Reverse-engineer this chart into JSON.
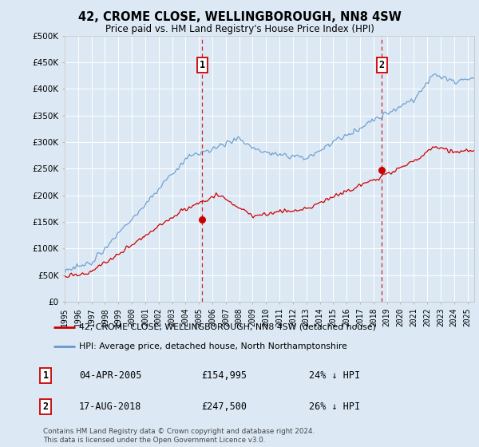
{
  "title": "42, CROME CLOSE, WELLINGBOROUGH, NN8 4SW",
  "subtitle": "Price paid vs. HM Land Registry's House Price Index (HPI)",
  "background_color": "#dce9f5",
  "hpi_color": "#6699cc",
  "price_color": "#cc0000",
  "ylim": [
    0,
    500000
  ],
  "yticks": [
    0,
    50000,
    100000,
    150000,
    200000,
    250000,
    300000,
    350000,
    400000,
    450000,
    500000
  ],
  "ytick_labels": [
    "£0",
    "£50K",
    "£100K",
    "£150K",
    "£200K",
    "£250K",
    "£300K",
    "£350K",
    "£400K",
    "£450K",
    "£500K"
  ],
  "sale1_year": 2005.25,
  "sale1_price": 154995,
  "sale1_date": "04-APR-2005",
  "sale1_amount": "£154,995",
  "sale1_hpi": "24% ↓ HPI",
  "sale2_year": 2018.62,
  "sale2_price": 247500,
  "sale2_date": "17-AUG-2018",
  "sale2_amount": "£247,500",
  "sale2_hpi": "26% ↓ HPI",
  "legend_label1": "42, CROME CLOSE, WELLINGBOROUGH, NN8 4SW (detached house)",
  "legend_label2": "HPI: Average price, detached house, North Northamptonshire",
  "footer": "Contains HM Land Registry data © Crown copyright and database right 2024.\nThis data is licensed under the Open Government Licence v3.0.",
  "xlim_start": 1995.0,
  "xlim_end": 2025.5
}
